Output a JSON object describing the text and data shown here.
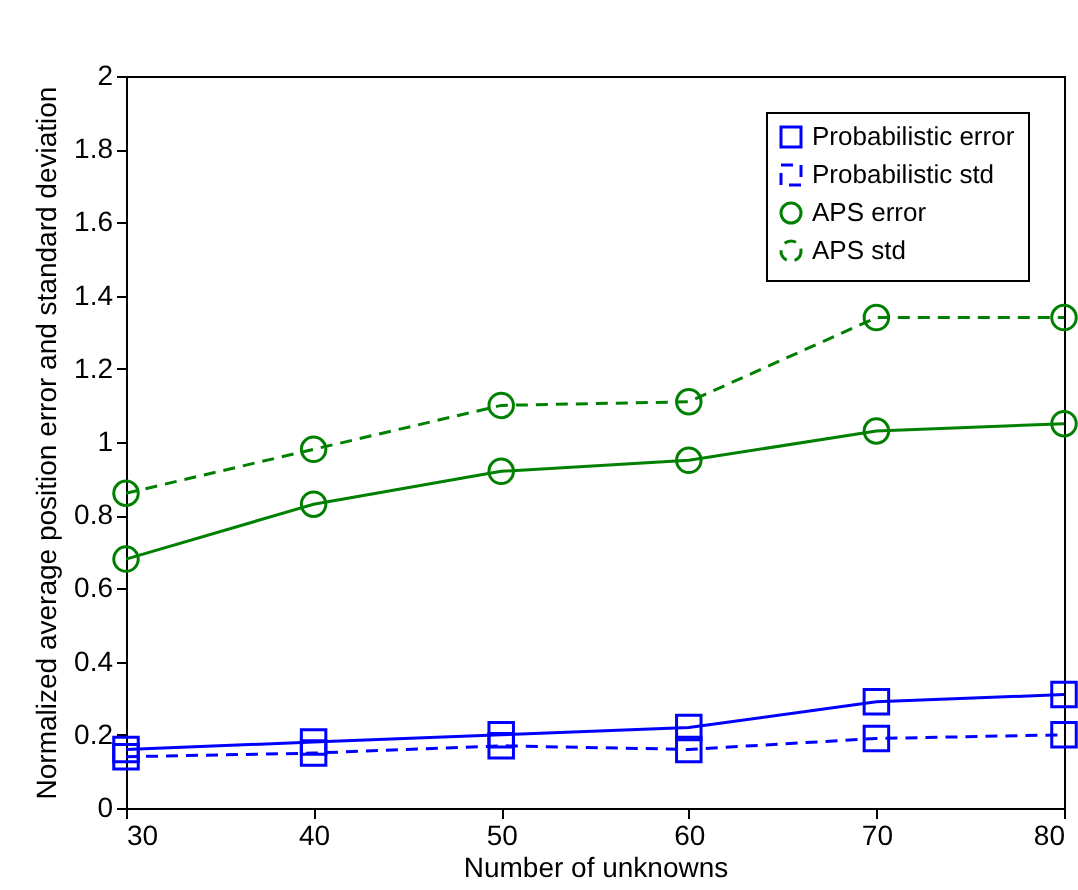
{
  "chart_data": {
    "type": "line",
    "xlabel": "Number of unknowns",
    "ylabel": "Normalized average position error and standard deviation",
    "x": [
      30,
      40,
      50,
      60,
      70,
      80
    ],
    "xlim": [
      30,
      80
    ],
    "xticks": [
      30,
      40,
      50,
      60,
      70,
      80
    ],
    "ylim": [
      0,
      2
    ],
    "yticks": [
      0,
      0.2,
      0.4,
      0.6,
      0.8,
      1,
      1.2,
      1.4,
      1.6,
      1.8,
      2
    ],
    "grid": false,
    "legend": "top right",
    "series": [
      {
        "name": "Probabilistic error",
        "color": "#0000ff",
        "marker": "square",
        "line_style": "solid",
        "values": [
          0.16,
          0.18,
          0.2,
          0.22,
          0.29,
          0.31
        ]
      },
      {
        "name": "Probabilistic std",
        "color": "#0000ff",
        "marker": "square",
        "line_style": "dashed",
        "values": [
          0.14,
          0.15,
          0.17,
          0.16,
          0.19,
          0.2
        ]
      },
      {
        "name": "APS error",
        "color": "#008000",
        "marker": "circle",
        "line_style": "solid",
        "values": [
          0.68,
          0.83,
          0.92,
          0.95,
          1.03,
          1.05
        ]
      },
      {
        "name": "APS std",
        "color": "#008000",
        "marker": "circle",
        "line_style": "dashed",
        "values": [
          0.86,
          0.98,
          1.1,
          1.11,
          1.34,
          1.34
        ]
      }
    ]
  }
}
